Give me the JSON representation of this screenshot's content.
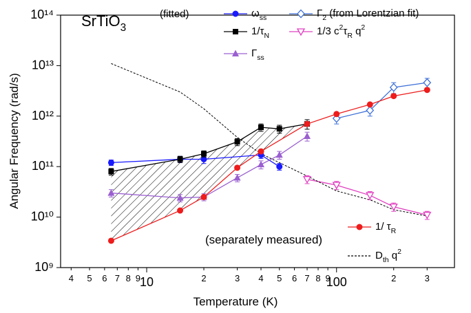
{
  "chart_data": {
    "type": "line",
    "x_label": "Temperature (K)",
    "y_label": "Angular Frequency (rad/s)",
    "annotations": [
      "SrTiO_{3}",
      "(fitted)",
      "(separately measured)"
    ],
    "log_x": true,
    "log_y": true,
    "xlim": [
      3.52,
      418
    ],
    "ylim": [
      1000000000.0,
      100000000000000.0
    ],
    "xticks": [
      4,
      5,
      6,
      7,
      8,
      9,
      10,
      {
        "value": 20,
        "label": "2"
      },
      {
        "value": 30,
        "label": "3"
      },
      {
        "value": 40,
        "label": "4"
      },
      {
        "value": 50,
        "label": "5"
      },
      {
        "value": 60,
        "label": "6"
      },
      {
        "value": 70,
        "label": "7"
      },
      {
        "value": 80,
        "label": "8"
      },
      {
        "value": 90,
        "label": "9"
      },
      100,
      {
        "value": 200,
        "label": "2"
      },
      {
        "value": 300,
        "label": "3"
      }
    ],
    "yticks": [
      {
        "value": 1000000000.0,
        "label": "10⁹"
      },
      {
        "value": 10000000000.0,
        "label": "10¹⁰"
      },
      {
        "value": 100000000000.0,
        "label": "10¹¹"
      },
      {
        "value": 1000000000000.0,
        "label": "10¹²"
      },
      {
        "value": 10000000000000.0,
        "label": "10¹³"
      },
      {
        "value": 100000000000000.0,
        "label": "10¹⁴"
      }
    ],
    "hatched_between": [
      1,
      5
    ],
    "series": [
      {
        "name": "ω_{ss}",
        "color": "#1a1aff",
        "marker": "circle",
        "x": [
          6.5,
          15,
          20,
          40,
          50
        ],
        "values": [
          120000000000.0,
          140000000000.0,
          140000000000.0,
          170000000000.0,
          100000000000.0
        ],
        "errors": [
          15000000000.0,
          20000000000.0,
          25000000000.0,
          25000000000.0,
          15000000000.0
        ]
      },
      {
        "name": "1/τ_{N}",
        "color": "#000000",
        "marker": "square",
        "x": [
          6.5,
          15,
          20,
          30,
          40,
          50,
          70
        ],
        "values": [
          80000000000.0,
          140000000000.0,
          180000000000.0,
          310000000000.0,
          600000000000.0,
          560000000000.0,
          700000000000.0
        ],
        "errors": [
          12000000000.0,
          20000000000.0,
          25000000000.0,
          50000000000.0,
          100000000000.0,
          100000000000.0,
          150000000000.0
        ]
      },
      {
        "name": "Γ_{ss}",
        "color": "#9a5fd0",
        "marker": "triangle",
        "x": [
          6.5,
          15,
          20,
          30,
          40,
          50,
          70
        ],
        "values": [
          30000000000.0,
          24000000000.0,
          25000000000.0,
          60000000000.0,
          110000000000.0,
          170000000000.0,
          400000000000.0
        ],
        "errors": [
          5000000000.0,
          4000000000.0,
          4000000000.0,
          10000000000.0,
          20000000000.0,
          30000000000.0,
          80000000000.0
        ]
      },
      {
        "name": "Γ_{2}  (from Lorentzian fit)",
        "color": "#3d6fd8",
        "marker": "diamond-open",
        "x": [
          100,
          150,
          200,
          300
        ],
        "values": [
          900000000000.0,
          1300000000000.0,
          3700000000000.0,
          4600000000000.0
        ],
        "errors": [
          200000000000.0,
          300000000000.0,
          900000000000.0,
          1000000000000.0
        ]
      },
      {
        "name": "1/3 c^{2}τ_{R} q^{2}",
        "color": "#e040c0",
        "marker": "triangle-down-open",
        "x": [
          70,
          100,
          150,
          200,
          300
        ],
        "values": [
          56000000000.0,
          43000000000.0,
          27000000000.0,
          16000000000.0,
          11000000000.0
        ],
        "errors": [
          10000000000.0,
          8000000000.0,
          5000000000.0,
          3000000000.0,
          2000000000.0
        ]
      },
      {
        "name": "1/ τ_{R}",
        "color": "#ee1c1c",
        "marker": "circle",
        "x": [
          6.5,
          15,
          20,
          30,
          40,
          70,
          100,
          150,
          200,
          300
        ],
        "values": [
          3400000000.0,
          13500000000.0,
          25000000000.0,
          95000000000.0,
          200000000000.0,
          700000000000.0,
          1100000000000.0,
          1700000000000.0,
          2500000000000.0,
          3300000000000.0
        ]
      },
      {
        "name": "D_{th} q^{2}",
        "color": "#000000",
        "marker": "none",
        "dashed": true,
        "x": [
          6.5,
          15,
          20,
          30,
          40,
          70,
          100,
          150,
          200,
          300
        ],
        "values": [
          11000000000000.0,
          3000000000000.0,
          1400000000000.0,
          380000000000.0,
          180000000000.0,
          65000000000.0,
          33000000000.0,
          22000000000.0,
          14000000000.0,
          10500000000.0
        ]
      }
    ]
  }
}
